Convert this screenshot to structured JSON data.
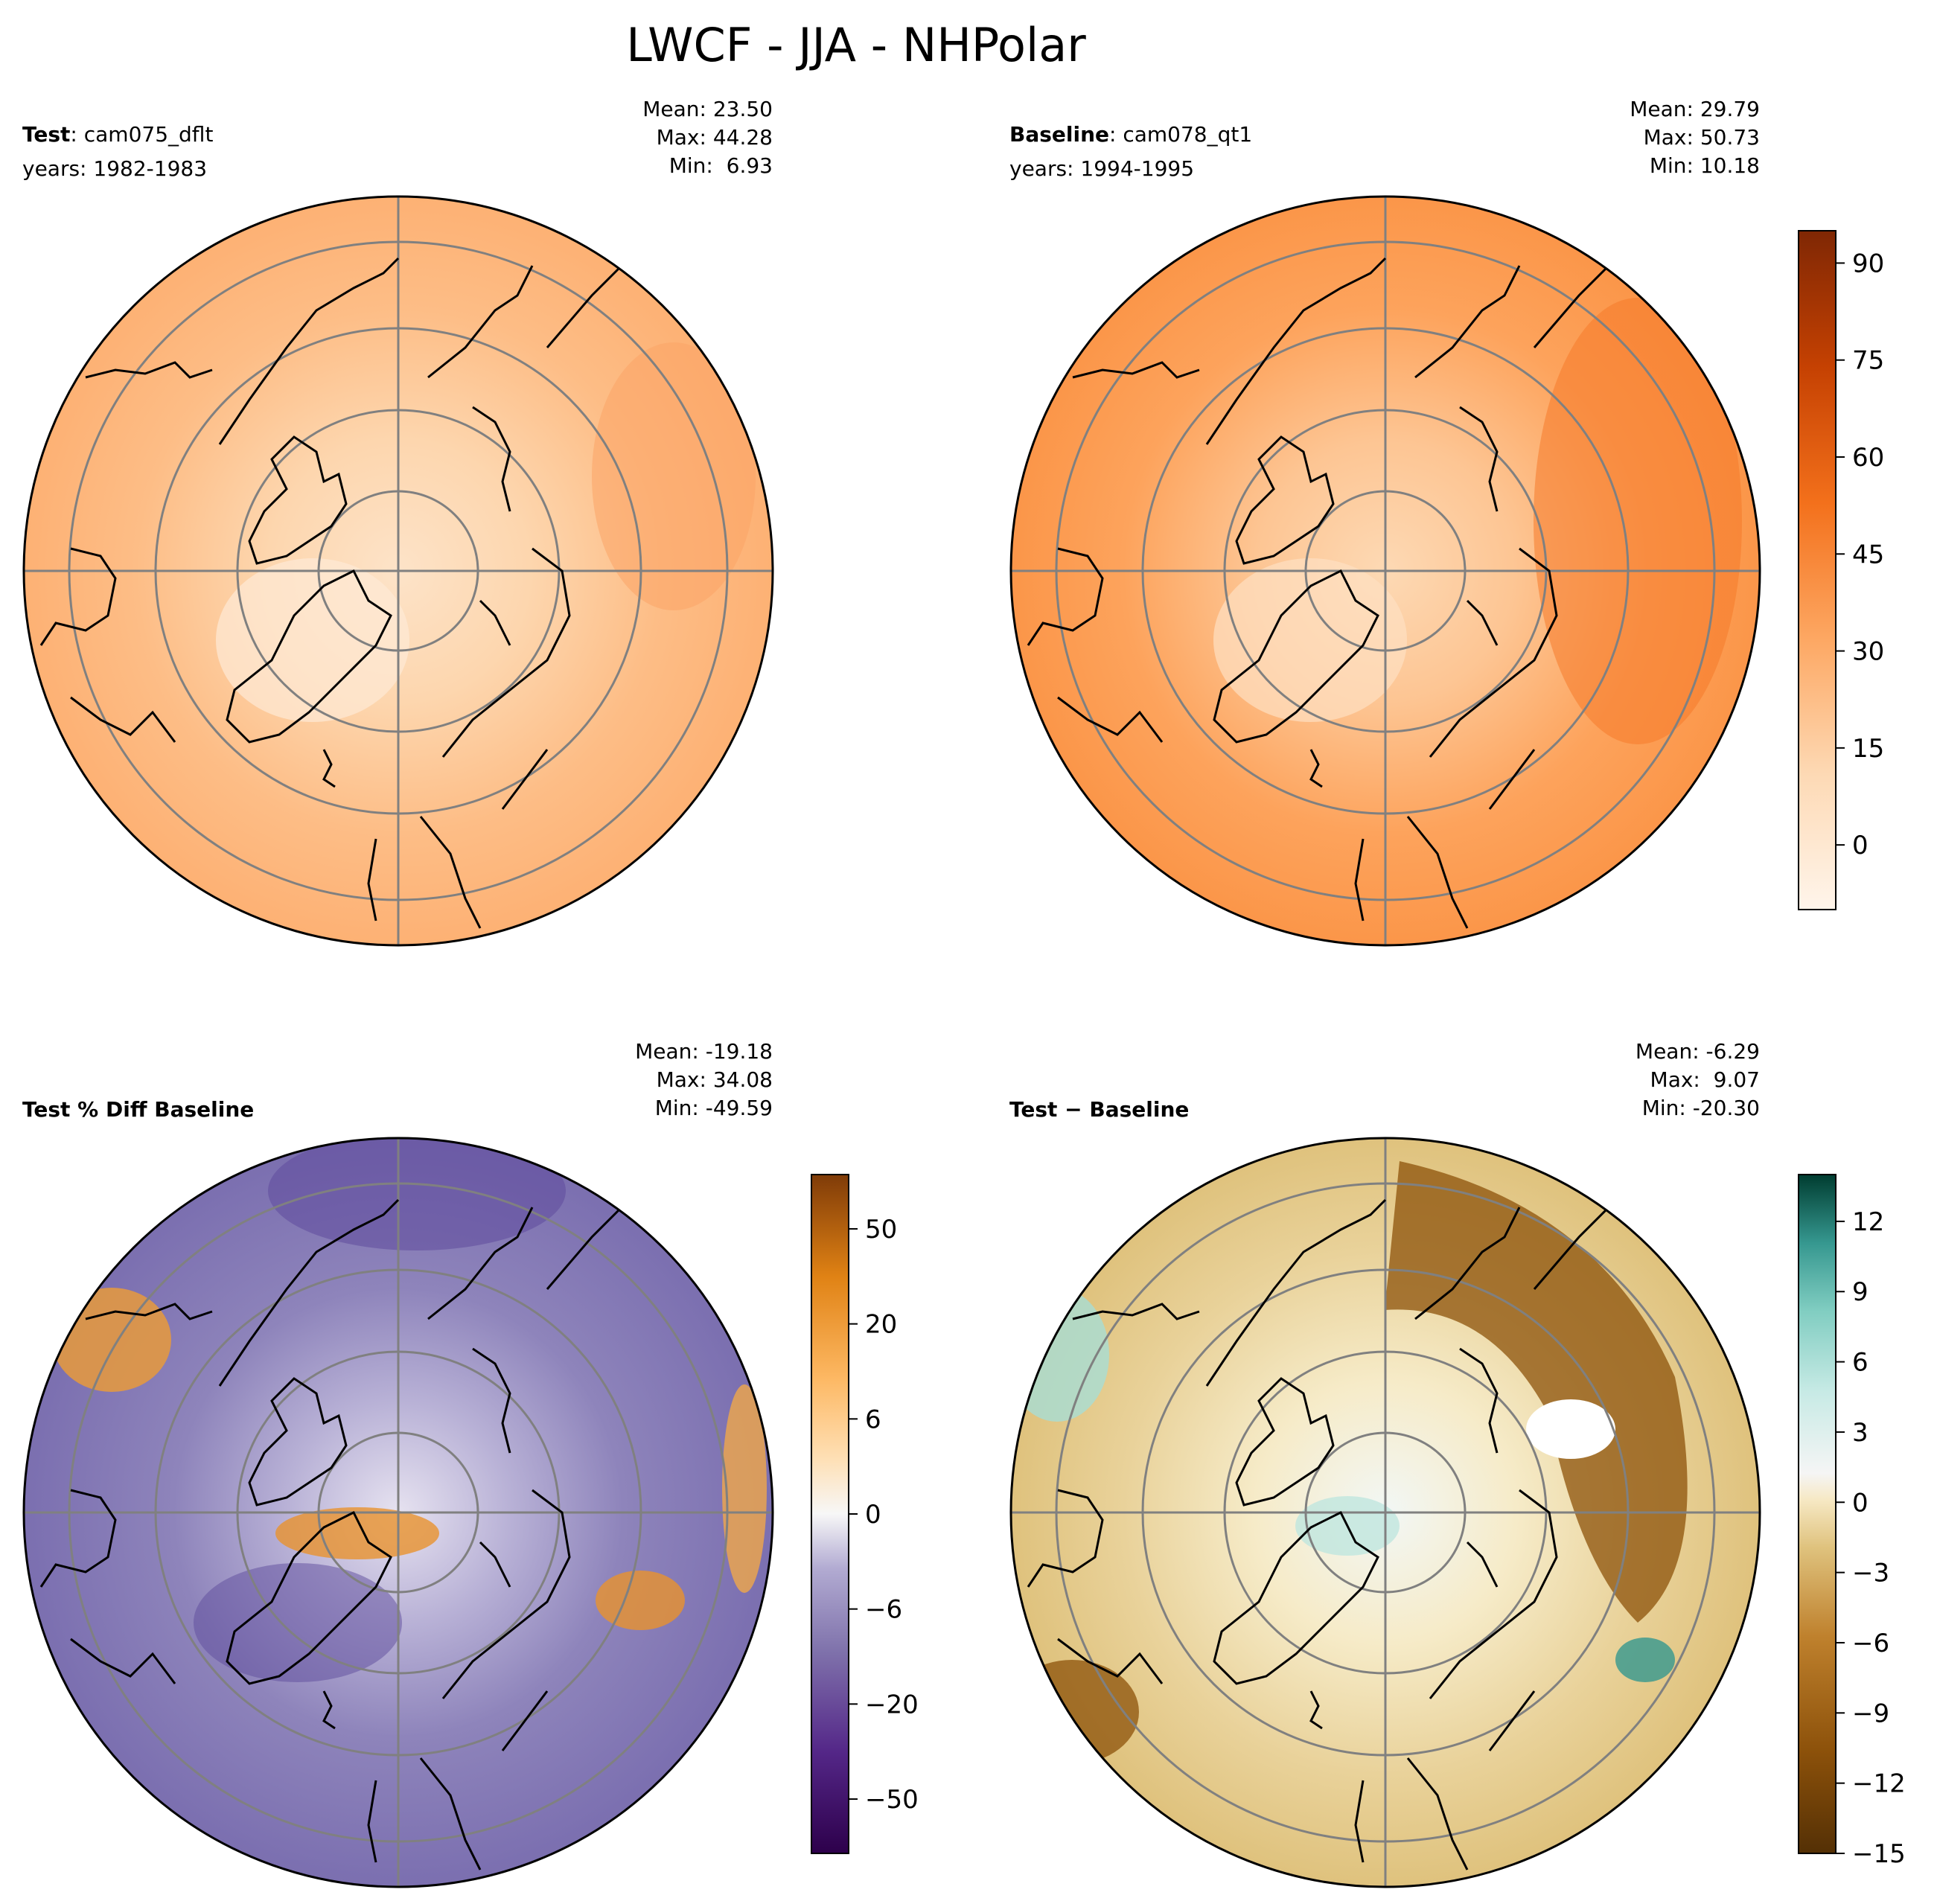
{
  "title": "LWCF - JJA - NHPolar",
  "colors": {
    "land_outline": "#000000",
    "graticule": "#808080",
    "orange_low": "#fff5eb",
    "orange_high": "#7f2704",
    "diff_orange": "#7f3b08",
    "diff_purple": "#2d004b",
    "brbg_brown": "#543005",
    "brbg_teal": "#003c30"
  },
  "panels": [
    {
      "id": "test",
      "label_bold": "Test",
      "label_rest": ": cam075_dflt",
      "years": "years: 1982-1983",
      "stats": [
        "Mean: 23.50",
        "Max: 44.28",
        "Min:  6.93"
      ],
      "colormap": "Oranges",
      "has_colorbar": false
    },
    {
      "id": "baseline",
      "label_bold": "Baseline",
      "label_rest": ": cam078_qt1",
      "years": "years: 1994-1995",
      "stats": [
        "Mean: 29.79",
        "Max: 50.73",
        "Min: 10.18"
      ],
      "colormap": "Oranges",
      "has_colorbar": true,
      "colorbar": {
        "ticks": [
          "90",
          "75",
          "60",
          "45",
          "30",
          "15",
          "0"
        ],
        "tick_values": [
          90,
          75,
          60,
          45,
          30,
          15,
          0
        ],
        "range": [
          -10,
          95
        ]
      }
    },
    {
      "id": "pctdiff",
      "label_bold": "Test % Diff Baseline",
      "label_rest": "",
      "years": "",
      "stats": [
        "Mean: -19.18",
        "Max: 34.08",
        "Min: -49.59"
      ],
      "colormap": "PuOr_r",
      "has_colorbar": true,
      "colorbar": {
        "ticks": [
          "50",
          "20",
          "6",
          "0",
          "−6",
          "−20",
          "−50"
        ],
        "tick_values": [
          50,
          20,
          6,
          0,
          -6,
          -20,
          -50
        ]
      }
    },
    {
      "id": "diff",
      "label_bold": "Test",
      "label_rest": " − Baseline",
      "years": "",
      "stats": [
        "Mean: -6.29",
        "Max:  9.07",
        "Min: -20.30"
      ],
      "colormap": "BrBG",
      "has_colorbar": true,
      "colorbar": {
        "ticks": [
          "12",
          "9",
          "6",
          "3",
          "0",
          "−3",
          "−6",
          "−9",
          "−12",
          "−15"
        ],
        "tick_values": [
          12,
          9,
          6,
          3,
          0,
          -3,
          -6,
          -9,
          -12,
          -15
        ],
        "range": [
          -15,
          14
        ]
      }
    }
  ],
  "chart_data": [
    {
      "type": "heatmap",
      "title": "Test: cam075_dflt",
      "projection": "north polar stereographic",
      "field": "LWCF",
      "season": "JJA",
      "region": "NHPolar",
      "years": "1982-1983",
      "mean": 23.5,
      "max": 44.28,
      "min": 6.93,
      "shared_colorbar_range": [
        -10,
        95
      ]
    },
    {
      "type": "heatmap",
      "title": "Baseline: cam078_qt1",
      "projection": "north polar stereographic",
      "field": "LWCF",
      "season": "JJA",
      "region": "NHPolar",
      "years": "1994-1995",
      "mean": 29.79,
      "max": 50.73,
      "min": 10.18,
      "colorbar_ticks": [
        0,
        15,
        30,
        45,
        60,
        75,
        90
      ],
      "colorbar_range": [
        -10,
        95
      ]
    },
    {
      "type": "heatmap",
      "title": "Test % Diff Baseline",
      "projection": "north polar stereographic",
      "mean": -19.18,
      "max": 34.08,
      "min": -49.59,
      "colorbar_ticks": [
        -50,
        -20,
        -6,
        0,
        6,
        20,
        50
      ],
      "colorbar_scale": "nonlinear"
    },
    {
      "type": "heatmap",
      "title": "Test − Baseline",
      "projection": "north polar stereographic",
      "mean": -6.29,
      "max": 9.07,
      "min": -20.3,
      "colorbar_ticks": [
        -15,
        -12,
        -9,
        -6,
        -3,
        0,
        3,
        6,
        9,
        12
      ],
      "colorbar_range": [
        -15,
        14
      ]
    }
  ]
}
